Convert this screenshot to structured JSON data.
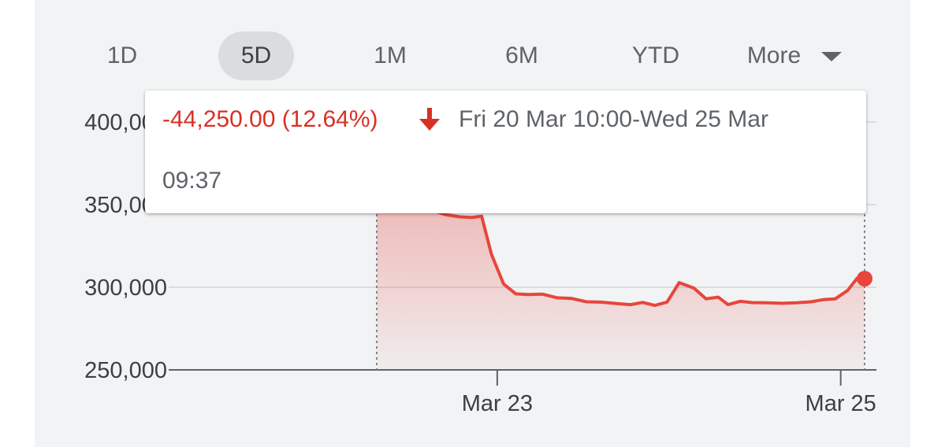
{
  "range_tabs": [
    {
      "label": "1D",
      "selected": false
    },
    {
      "label": "5D",
      "selected": true
    },
    {
      "label": "1M",
      "selected": false
    },
    {
      "label": "6M",
      "selected": false
    },
    {
      "label": "YTD",
      "selected": false
    },
    {
      "label": "More",
      "selected": false
    }
  ],
  "tooltip": {
    "change": "-44,250.00 (12.64%)",
    "range_line1": "Fri 20 Mar 10:00-Wed 25 Mar",
    "range_line2": "09:37",
    "direction": "down"
  },
  "colors": {
    "negative": "#d93025",
    "line": "#e8453c",
    "gridline": "#dadce0",
    "panel_bg": "#f1f3f4"
  },
  "icons": {
    "dropdown": "caret-down-icon",
    "direction": "arrow-down-icon"
  },
  "chart_data": {
    "type": "area",
    "title": "",
    "xlabel": "",
    "ylabel": "",
    "ylim": [
      250000,
      400000
    ],
    "y_ticks": [
      "400,000",
      "350,000",
      "300,000",
      "250,000"
    ],
    "y_tick_values": [
      400000,
      350000,
      300000,
      250000
    ],
    "x_ticks": [
      {
        "label": "Mar 23",
        "t": 0.247
      },
      {
        "label": "Mar 25",
        "t": 0.951
      }
    ],
    "selection": {
      "start_t": 0.0,
      "end_t": 1.0
    },
    "series": [
      {
        "values": [
          [
            0.0,
            349700
          ],
          [
            0.11,
            347000
          ],
          [
            0.14,
            344000
          ],
          [
            0.17,
            342600
          ],
          [
            0.195,
            342200
          ],
          [
            0.215,
            343000
          ],
          [
            0.235,
            320000
          ],
          [
            0.26,
            302000
          ],
          [
            0.285,
            296000
          ],
          [
            0.31,
            295600
          ],
          [
            0.34,
            295800
          ],
          [
            0.37,
            293600
          ],
          [
            0.4,
            293200
          ],
          [
            0.43,
            291200
          ],
          [
            0.46,
            291000
          ],
          [
            0.49,
            290200
          ],
          [
            0.52,
            289500
          ],
          [
            0.545,
            290800
          ],
          [
            0.57,
            289000
          ],
          [
            0.595,
            291000
          ],
          [
            0.62,
            302800
          ],
          [
            0.65,
            299500
          ],
          [
            0.675,
            293000
          ],
          [
            0.7,
            294000
          ],
          [
            0.72,
            289500
          ],
          [
            0.745,
            291500
          ],
          [
            0.77,
            290700
          ],
          [
            0.8,
            290600
          ],
          [
            0.83,
            290300
          ],
          [
            0.86,
            290600
          ],
          [
            0.89,
            291200
          ],
          [
            0.915,
            292500
          ],
          [
            0.94,
            293000
          ],
          [
            0.965,
            298000
          ],
          [
            0.985,
            305500
          ],
          [
            1.0,
            305200
          ]
        ]
      }
    ]
  }
}
